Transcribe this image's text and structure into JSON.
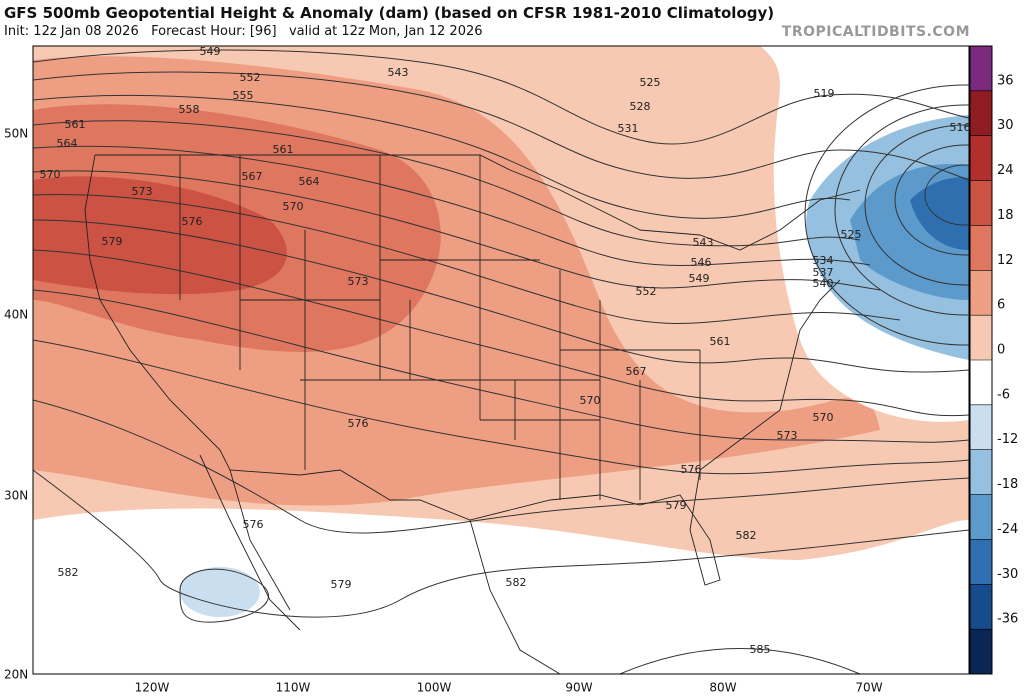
{
  "header": {
    "title": "GFS 500mb Geopotential Height & Anomaly (dam) (based on CFSR 1981-2010 Climatology)",
    "subtitle": "Init: 12z Jan 08 2026   Forecast Hour: [96]   valid at 12z Mon, Jan 12 2026",
    "source": "TROPICALTIDBITS.COM"
  },
  "map": {
    "lat_labels": [
      "50N",
      "40N",
      "30N",
      "20N"
    ],
    "lon_labels": [
      "120W",
      "110W",
      "100W",
      "90W",
      "80W",
      "70W"
    ],
    "contour_labels": [
      "549",
      "552",
      "543",
      "525",
      "519",
      "555",
      "558",
      "528",
      "531",
      "516",
      "561",
      "564",
      "561",
      "570",
      "567",
      "564",
      "573",
      "570",
      "576",
      "525",
      "579",
      "543",
      "546",
      "534",
      "537",
      "549",
      "540",
      "573",
      "552",
      "561",
      "567",
      "570",
      "570",
      "576",
      "573",
      "576",
      "579",
      "576",
      "582",
      "582",
      "579",
      "582",
      "585"
    ]
  },
  "colorbar": {
    "ticks": [
      36,
      30,
      24,
      18,
      12,
      6,
      0,
      -6,
      -12,
      -18,
      -24,
      -30,
      -36
    ],
    "colors": [
      "#7a2a7f",
      "#8e1c20",
      "#b1302e",
      "#cc5244",
      "#df7760",
      "#ee9f83",
      "#f8c9b2",
      "#ffffff",
      "#c9dff0",
      "#95c0e0",
      "#5b9acb",
      "#2f6fb0",
      "#164c8c",
      "#0b2654"
    ]
  }
}
